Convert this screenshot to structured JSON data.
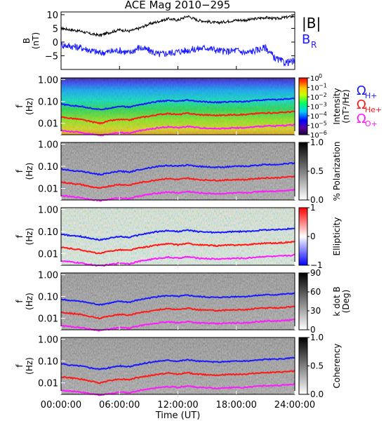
{
  "title": "ACE Mag 2010−295",
  "colors": {
    "bmag": "#000000",
    "br": "#1a1aff",
    "omega_h": "#1a1aff",
    "omega_he": "#ff1a1a",
    "omega_o": "#ff1aff",
    "axis": "#000000"
  },
  "chart_data": [
    {
      "type": "line",
      "panel_id": "field",
      "ylabel": "B",
      "yunit": "(nT)",
      "ylim": [
        -10,
        11
      ],
      "yticks": [
        "10",
        "5",
        "0",
        "−5"
      ],
      "ytick_values": [
        10,
        5,
        0,
        -5
      ],
      "x_hours": [
        0,
        1,
        2,
        3,
        4,
        5,
        6,
        7,
        8,
        9,
        10,
        11,
        12,
        13,
        14,
        15,
        16,
        17,
        18,
        19,
        20,
        21,
        22,
        23,
        24
      ],
      "series": [
        {
          "name": "|B|",
          "color": "#000000",
          "values": [
            5,
            4.5,
            4,
            3,
            2.5,
            3.5,
            4.5,
            4,
            5,
            6.5,
            7.5,
            8.5,
            8,
            9.5,
            8,
            7.5,
            7,
            7.5,
            8,
            8,
            8.5,
            9,
            8.5,
            9,
            9.5
          ]
        },
        {
          "name": "B_R",
          "color": "#1a1aff",
          "values": [
            -1,
            -1.5,
            -2,
            -3,
            -4,
            -3.5,
            -3,
            -4,
            -2,
            -3,
            -4.5,
            -4,
            -3.5,
            -3,
            -2.5,
            -2,
            -3,
            -3.5,
            -3,
            -4,
            -3,
            -2,
            -6,
            -7.5,
            -7
          ]
        }
      ],
      "legend": [
        {
          "label": "|B|",
          "color": "#000000"
        },
        {
          "label": "B",
          "sub": "R",
          "color": "#1a1aff"
        }
      ]
    },
    {
      "type": "heatmap",
      "panel_id": "intensity",
      "ylabel": "f",
      "yunit": "(Hz)",
      "yscale": "log",
      "ylim": [
        0.003,
        1.2
      ],
      "yticks": [
        "1.00",
        "0.10",
        "0.01"
      ],
      "colorbar": {
        "label": "Intensity",
        "unit": "(nT²/Hz)",
        "scale": "log",
        "ticks": [
          "10",
          "10",
          "10",
          "10",
          "10",
          "10",
          "10"
        ],
        "tick_exponents": [
          "0",
          "−1",
          "−2",
          "−3",
          "−4",
          "−5",
          "−6"
        ],
        "palette": "rainbow"
      },
      "legend": [
        {
          "label": "Ω",
          "sub": "H+",
          "color": "#1a1aff"
        },
        {
          "label": "Ω",
          "sub": "He+",
          "color": "#ff1a1a"
        },
        {
          "label": "Ω",
          "sub": "O+",
          "color": "#ff1aff"
        }
      ]
    },
    {
      "type": "heatmap",
      "panel_id": "polarization",
      "ylabel": "f",
      "yunit": "(Hz)",
      "yscale": "log",
      "ylim": [
        0.003,
        1.2
      ],
      "yticks": [
        "1.00",
        "0.10",
        "0.01"
      ],
      "colorbar": {
        "label": "% Polarization",
        "unit": "",
        "ticks": [
          "1.0",
          "0.5",
          "0.0"
        ],
        "palette": "gray"
      }
    },
    {
      "type": "heatmap",
      "panel_id": "ellipticity",
      "ylabel": "f",
      "yunit": "(Hz)",
      "yscale": "log",
      "ylim": [
        0.003,
        1.2
      ],
      "yticks": [
        "1.00",
        "0.10",
        "0.01"
      ],
      "colorbar": {
        "label": "Ellipticity",
        "unit": "",
        "ticks": [
          "1",
          "0",
          "−1"
        ],
        "palette": "bwr"
      }
    },
    {
      "type": "heatmap",
      "panel_id": "kdotb",
      "ylabel": "f",
      "yunit": "(Hz)",
      "yscale": "log",
      "ylim": [
        0.003,
        1.2
      ],
      "yticks": [
        "1.00",
        "0.10",
        "0.01"
      ],
      "colorbar": {
        "label": "k dot B",
        "unit": "(Deg)",
        "ticks": [
          "90",
          "60",
          "30",
          "0"
        ],
        "palette": "gray"
      }
    },
    {
      "type": "heatmap",
      "panel_id": "coherency",
      "ylabel": "f",
      "yunit": "(Hz)",
      "yscale": "log",
      "ylim": [
        0.003,
        1.2
      ],
      "yticks": [
        "1.00",
        "0.10",
        "0.01"
      ],
      "colorbar": {
        "label": "Coherency",
        "unit": "",
        "ticks": [
          "1.0",
          "0.5",
          "0.0"
        ],
        "palette": "gray"
      }
    }
  ],
  "gyro_lines": {
    "x_hours": [
      0,
      1,
      2,
      3,
      4,
      5,
      6,
      7,
      8,
      9,
      10,
      11,
      12,
      13,
      14,
      15,
      16,
      17,
      18,
      19,
      20,
      21,
      22,
      23,
      24
    ],
    "series": [
      {
        "name": "Ω H+",
        "color": "#1a1aff",
        "values": [
          0.075,
          0.065,
          0.06,
          0.05,
          0.042,
          0.05,
          0.06,
          0.055,
          0.07,
          0.085,
          0.1,
          0.11,
          0.1,
          0.115,
          0.1,
          0.095,
          0.09,
          0.095,
          0.1,
          0.1,
          0.11,
          0.12,
          0.12,
          0.13,
          0.14
        ]
      },
      {
        "name": "Ω He+",
        "color": "#ff1a1a",
        "values": [
          0.019,
          0.017,
          0.015,
          0.012,
          0.01,
          0.013,
          0.015,
          0.014,
          0.018,
          0.021,
          0.025,
          0.028,
          0.025,
          0.029,
          0.025,
          0.024,
          0.023,
          0.024,
          0.025,
          0.025,
          0.028,
          0.03,
          0.03,
          0.032,
          0.035
        ]
      },
      {
        "name": "Ω O+",
        "color": "#ff1aff",
        "values": [
          0.0047,
          0.0042,
          0.0038,
          0.0032,
          0.0028,
          0.0032,
          0.0038,
          0.0035,
          0.0045,
          0.0053,
          0.0062,
          0.0069,
          0.0062,
          0.0072,
          0.0063,
          0.006,
          0.0057,
          0.006,
          0.0062,
          0.0062,
          0.007,
          0.0075,
          0.0075,
          0.008,
          0.0087
        ]
      }
    ]
  },
  "x_axis": {
    "label": "Time (UT)",
    "ticks": [
      "00:00:00",
      "06:00:00",
      "12:00:00",
      "18:00:00",
      "24:00:00"
    ],
    "tick_hours": [
      0,
      6,
      12,
      18,
      24
    ],
    "xlim": [
      0,
      24
    ]
  }
}
